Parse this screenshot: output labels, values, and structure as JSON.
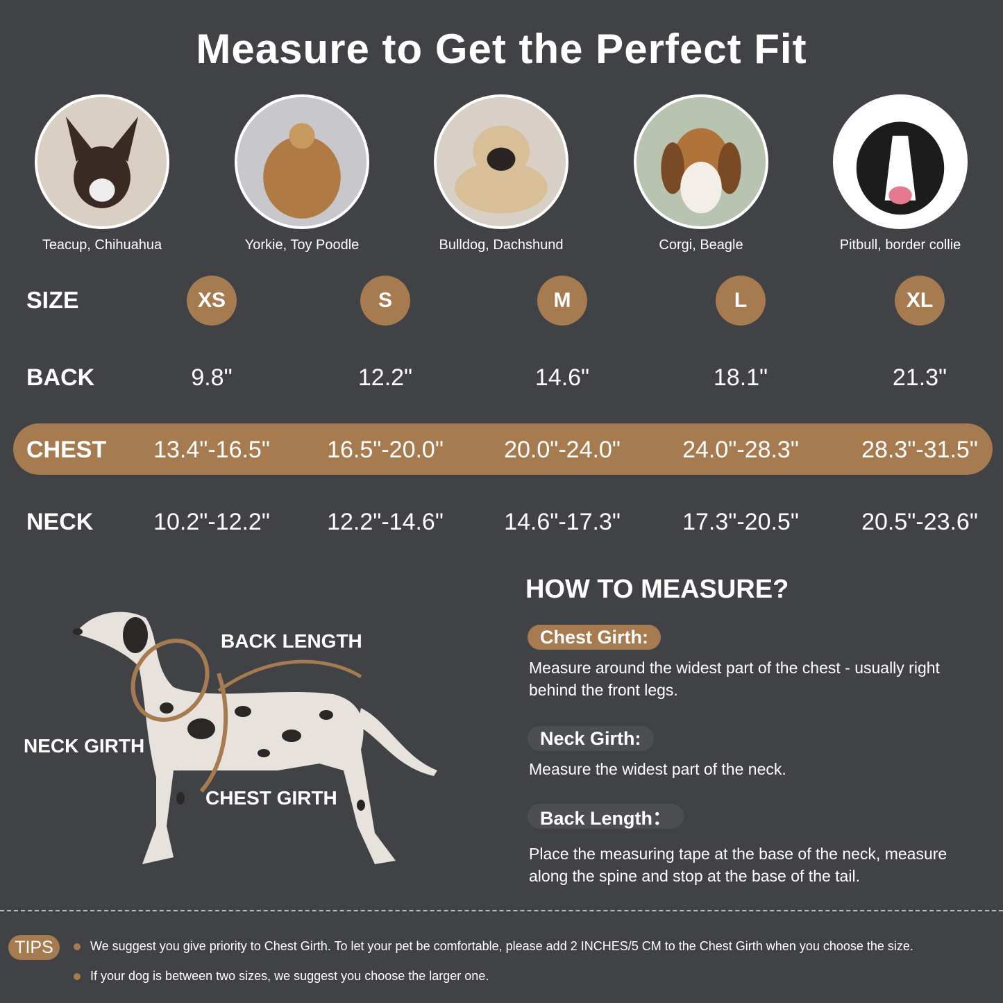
{
  "title": "Measure to Get the Perfect Fit",
  "breeds": [
    "Teacup, Chihuahua",
    "Yorkie, Toy Poodle",
    "Bulldog, Dachshund",
    "Corgi, Beagle",
    "Pitbull, border collie"
  ],
  "rows": {
    "size": {
      "label": "SIZE",
      "values": [
        "XS",
        "S",
        "M",
        "L",
        "XL"
      ]
    },
    "back": {
      "label": "BACK",
      "values": [
        "9.8\"",
        "12.2\"",
        "14.6\"",
        "18.1\"",
        "21.3\""
      ]
    },
    "chest": {
      "label": "CHEST",
      "values": [
        "13.4\"-16.5\"",
        "16.5\"-20.0\"",
        "20.0\"-24.0\"",
        "24.0\"-28.3\"",
        "28.3\"-31.5\""
      ]
    },
    "neck": {
      "label": "NECK",
      "values": [
        "10.2\"-12.2\"",
        "12.2\"-14.6\"",
        "14.6\"-17.3\"",
        "17.3\"-20.5\"",
        "20.5\"-23.6\""
      ]
    }
  },
  "diagram": {
    "back": "BACK LENGTH",
    "neck": "NECK GIRTH",
    "chest": "CHEST GIRTH"
  },
  "how": {
    "title": "HOW TO MEASURE?",
    "items": [
      {
        "label": "Chest Girth:",
        "text": "Measure around the widest part of the chest - usually right behind the front legs."
      },
      {
        "label": "Neck Girth:",
        "text": "Measure the widest part of the neck."
      },
      {
        "label": "Back Length：",
        "text": "Place the measuring tape at the base of the neck, measure along the spine and stop at the base of the tail."
      }
    ]
  },
  "tips": {
    "label": "TIPS",
    "items": [
      "We suggest you give priority to Chest Girth. To let your pet be comfortable, please add 2 INCHES/5 CM to the Chest Girth when you choose the size.",
      "If your dog is between two sizes, we suggest you choose the larger one."
    ]
  },
  "colors": {
    "background": "#414245",
    "accent": "#a67b4f",
    "pill_dark": "#4d4e52"
  }
}
